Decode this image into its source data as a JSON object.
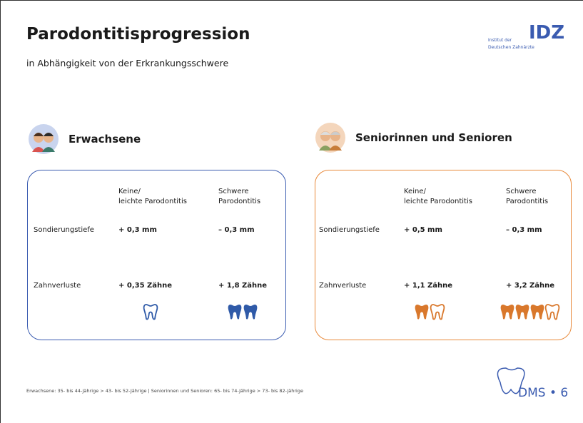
{
  "header": {
    "title": "Parodontitisprogression",
    "subtitle": "in Abhängigkeit von der Erkrankungsschwere"
  },
  "logo": {
    "line1": "Institut der",
    "line2": "Deutschen Zahnärzte",
    "mark": "IDZ"
  },
  "panels": [
    {
      "heading": "Erwachsene",
      "columns": [
        "Keine/\nleichte Parodontitis",
        "Schwere\nParodontitis"
      ],
      "rows": [
        {
          "label": "Sondierungstiefe",
          "values": [
            "+ 0,3 mm",
            "– 0,3 mm"
          ]
        },
        {
          "label": "Zahnverluste",
          "values": [
            "+ 0,35 Zähne",
            "+ 1,8 Zähne"
          ]
        }
      ]
    },
    {
      "heading": "Seniorinnen und Senioren",
      "columns": [
        "Keine/\nleichte Parodontitis",
        "Schwere\nParodontitis"
      ],
      "rows": [
        {
          "label": "Sondierungstiefe",
          "values": [
            "+ 0,5 mm",
            "– 0,3 mm"
          ]
        },
        {
          "label": "Zahnverluste",
          "values": [
            "+ 1,1 Zähne",
            "+ 3,2 Zähne"
          ]
        }
      ]
    }
  ],
  "footer": {
    "note": "Erwachsene: 35- bis 44-Jährige > 43- bis 52-Jährige | Seniorinnen und Senioren: 65- bis 74-Jährige > 73- bis 82-Jährige",
    "badge": "DMS • 6"
  }
}
